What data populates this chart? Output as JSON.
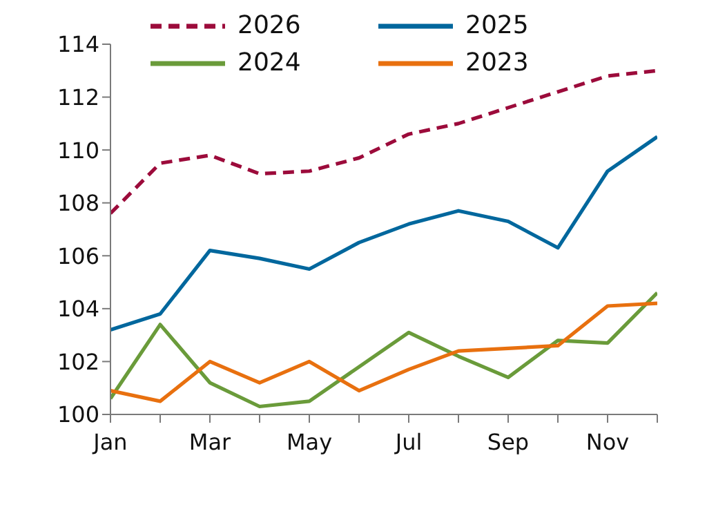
{
  "chart_data": {
    "type": "line",
    "categories": [
      "Jan",
      null,
      "Mar",
      null,
      "May",
      null,
      "Jul",
      null,
      "Sep",
      null,
      "Nov",
      null
    ],
    "series": [
      {
        "name": "2026",
        "color": "#9c0b3b",
        "line_style": "dashed",
        "values": [
          107.6,
          109.5,
          109.8,
          109.1,
          109.2,
          109.7,
          110.6,
          111.0,
          111.6,
          112.2,
          112.8,
          113.0
        ]
      },
      {
        "name": "2025",
        "color": "#00679d",
        "values": [
          103.2,
          103.8,
          106.2,
          105.9,
          105.5,
          106.5,
          107.2,
          107.7,
          107.3,
          106.3,
          109.2,
          110.5
        ]
      },
      {
        "name": "2024",
        "color": "#6a9b3a",
        "values": [
          100.6,
          103.4,
          101.2,
          100.3,
          100.5,
          101.8,
          103.1,
          102.2,
          101.4,
          102.8,
          102.7,
          104.6
        ]
      },
      {
        "name": "2023",
        "color": "#e8700f",
        "values": [
          100.9,
          100.5,
          102.0,
          101.2,
          102.0,
          100.9,
          101.7,
          102.4,
          102.5,
          102.6,
          104.1,
          104.2
        ]
      }
    ],
    "ylim": [
      100,
      114
    ],
    "yticks": [
      100,
      102,
      104,
      106,
      108,
      110,
      112,
      114
    ],
    "grid": false,
    "legend": "top",
    "marker": "none",
    "line_style": "solid"
  }
}
